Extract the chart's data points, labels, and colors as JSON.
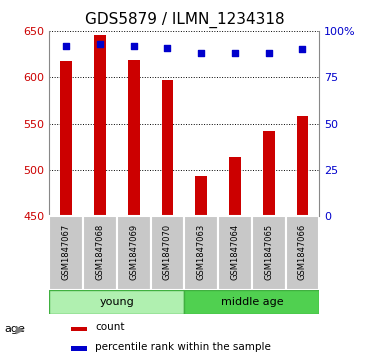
{
  "title": "GDS5879 / ILMN_1234318",
  "samples": [
    "GSM1847067",
    "GSM1847068",
    "GSM1847069",
    "GSM1847070",
    "GSM1847063",
    "GSM1847064",
    "GSM1847065",
    "GSM1847066"
  ],
  "counts": [
    617,
    645,
    619,
    597,
    493,
    514,
    542,
    558
  ],
  "percentiles": [
    92,
    93,
    92,
    91,
    88,
    88,
    88,
    90
  ],
  "groups": [
    "young",
    "young",
    "young",
    "young",
    "middle age",
    "middle age",
    "middle age",
    "middle age"
  ],
  "ylim_left": [
    450,
    650
  ],
  "ylim_right": [
    0,
    100
  ],
  "yticks_left": [
    450,
    500,
    550,
    600,
    650
  ],
  "yticks_right": [
    0,
    25,
    50,
    75,
    100
  ],
  "bar_color": "#cc0000",
  "dot_color": "#0000cc",
  "bar_width": 0.35,
  "background_color": "#ffffff",
  "label_bg_color": "#c8c8c8",
  "legend_count": "count",
  "legend_percentile": "percentile rank within the sample",
  "title_fontsize": 11,
  "tick_fontsize": 8,
  "young_color": "#b0f0b0",
  "middle_color": "#50d050",
  "group_border_color": "#40b040"
}
